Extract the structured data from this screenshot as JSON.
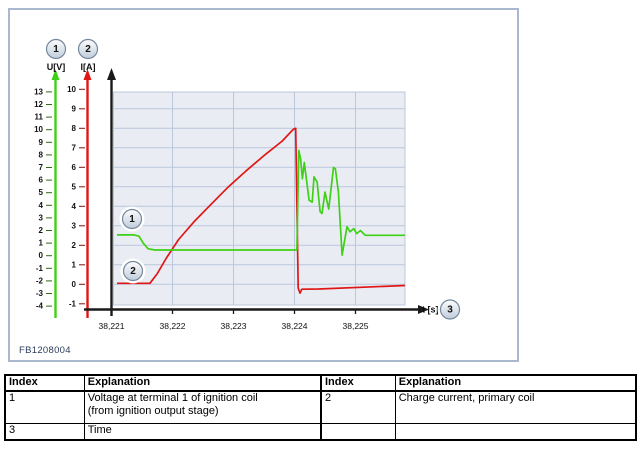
{
  "figure": {
    "id_label": "FB1208004"
  },
  "chart": {
    "badges": {
      "one": "1",
      "two": "2",
      "three": "3"
    },
    "y_axis_voltage": {
      "label": "U[V]",
      "color": "#3fd016",
      "ticks": [
        13,
        12,
        11,
        10,
        9,
        8,
        7,
        6,
        5,
        4,
        3,
        2,
        1,
        0,
        -1,
        -2,
        -3,
        -4
      ]
    },
    "y_axis_current": {
      "label": "I[A]",
      "color": "#e01616",
      "ticks": [
        10,
        9,
        8,
        7,
        6,
        5,
        4,
        3,
        2,
        1,
        0,
        -1
      ]
    },
    "x_axis": {
      "label": "t [s]",
      "tick_labels": [
        "38,221",
        "38,222",
        "38,223",
        "38,224",
        "38,225"
      ],
      "tick_values": [
        38.221,
        38.222,
        38.223,
        38.224,
        38.225
      ]
    }
  },
  "chart_data": {
    "type": "line",
    "title": "",
    "xlabel": "t [s]",
    "x_range": [
      38.221,
      38.2258
    ],
    "voltage_axis_range": [
      -4,
      13
    ],
    "current_axis_range": [
      -1,
      10
    ],
    "grid": true,
    "series": [
      {
        "name": "Voltage at terminal 1 of ignition coil",
        "index_badge": "1",
        "axis": "U[V]",
        "color": "#3fd016",
        "points": [
          [
            38.22109,
            1.65
          ],
          [
            38.22137,
            1.65
          ],
          [
            38.22145,
            1.55
          ],
          [
            38.22152,
            1.0
          ],
          [
            38.2216,
            0.55
          ],
          [
            38.22171,
            0.45
          ],
          [
            38.22404,
            0.45
          ],
          [
            38.22407,
            8.35
          ],
          [
            38.2241,
            7.7
          ],
          [
            38.22413,
            6.1
          ],
          [
            38.22416,
            7.4
          ],
          [
            38.22424,
            4.4
          ],
          [
            38.22429,
            4.25
          ],
          [
            38.22432,
            6.25
          ],
          [
            38.22437,
            5.85
          ],
          [
            38.22442,
            3.5
          ],
          [
            38.22445,
            3.35
          ],
          [
            38.2245,
            5.05
          ],
          [
            38.22456,
            3.7
          ],
          [
            38.22464,
            7.0
          ],
          [
            38.22467,
            6.9
          ],
          [
            38.22472,
            5.05
          ],
          [
            38.22478,
            0.05
          ],
          [
            38.22486,
            2.3
          ],
          [
            38.22491,
            1.9
          ],
          [
            38.22497,
            2.15
          ],
          [
            38.22502,
            1.75
          ],
          [
            38.22508,
            2.0
          ],
          [
            38.22516,
            1.62
          ],
          [
            38.22581,
            1.62
          ]
        ]
      },
      {
        "name": "Charge current, primary coil",
        "index_badge": "2",
        "axis": "I[A]",
        "color": "#e01616",
        "points": [
          [
            38.22109,
            0.05
          ],
          [
            38.22163,
            0.05
          ],
          [
            38.22175,
            0.55
          ],
          [
            38.2219,
            1.35
          ],
          [
            38.2221,
            2.3
          ],
          [
            38.22235,
            3.2
          ],
          [
            38.2226,
            4.0
          ],
          [
            38.2229,
            4.95
          ],
          [
            38.2232,
            5.8
          ],
          [
            38.2235,
            6.6
          ],
          [
            38.2238,
            7.35
          ],
          [
            38.22398,
            7.95
          ],
          [
            38.22402,
            8.0
          ],
          [
            38.22406,
            -0.2
          ],
          [
            38.22409,
            -0.45
          ],
          [
            38.22412,
            -0.25
          ],
          [
            38.2244,
            -0.24
          ],
          [
            38.22581,
            -0.06
          ]
        ]
      }
    ]
  },
  "table": {
    "headers": [
      "Index",
      "Explanation",
      "Index",
      "Explanation"
    ],
    "rows": [
      [
        "1",
        "Voltage at terminal 1 of ignition coil\n(from ignition output stage)",
        "2",
        "Charge current, primary coil"
      ],
      [
        "3",
        "Time",
        "",
        ""
      ]
    ]
  }
}
